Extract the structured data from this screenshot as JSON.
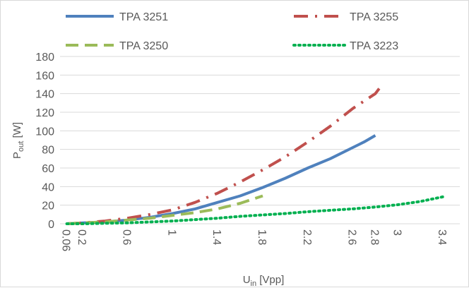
{
  "chart_data": {
    "type": "line",
    "xlabel": {
      "main": "U",
      "sub": "in",
      "rest": " [Vpp]"
    },
    "ylabel": {
      "main": "P",
      "sub": "out",
      "rest": " [W]"
    },
    "ylim": [
      0,
      180
    ],
    "y_ticks": [
      0,
      20,
      40,
      60,
      80,
      100,
      120,
      140,
      160,
      180
    ],
    "xlim": [
      0,
      3.55
    ],
    "x_ticks": [
      {
        "value": 0.06,
        "label": "0.06"
      },
      {
        "value": 0.2,
        "label": "0.2"
      },
      {
        "value": 0.6,
        "label": "0.6"
      },
      {
        "value": 1.0,
        "label": "1"
      },
      {
        "value": 1.4,
        "label": "1.4"
      },
      {
        "value": 1.8,
        "label": "1.8"
      },
      {
        "value": 2.2,
        "label": "2.2"
      },
      {
        "value": 2.6,
        "label": "2.6"
      },
      {
        "value": 2.8,
        "label": "2.8"
      },
      {
        "value": 3.0,
        "label": "3"
      },
      {
        "value": 3.4,
        "label": "3.4"
      }
    ],
    "grid": true,
    "legend_position": "top",
    "series": [
      {
        "name": "TPA 3251",
        "color": "#4f81bd",
        "style": "solid",
        "x": [
          0.06,
          0.2,
          0.4,
          0.6,
          0.8,
          1.0,
          1.2,
          1.4,
          1.6,
          1.8,
          2.0,
          2.2,
          2.4,
          2.6,
          2.7,
          2.8
        ],
        "y": [
          0,
          1,
          2,
          4,
          7,
          11,
          16,
          23,
          30,
          39,
          49,
          60,
          70,
          82,
          88,
          95
        ]
      },
      {
        "name": "TPA 3255",
        "color": "#c0504d",
        "style": "dashdot",
        "x": [
          0.06,
          0.2,
          0.4,
          0.6,
          0.8,
          1.0,
          1.2,
          1.4,
          1.6,
          1.8,
          2.0,
          2.2,
          2.4,
          2.6,
          2.8,
          2.85
        ],
        "y": [
          0,
          1,
          3,
          6,
          10,
          15,
          23,
          33,
          45,
          58,
          72,
          88,
          105,
          124,
          140,
          148
        ]
      },
      {
        "name": "TPA 3250",
        "color": "#9bbb59",
        "style": "dash",
        "x": [
          0.06,
          0.2,
          0.4,
          0.6,
          0.8,
          1.0,
          1.2,
          1.4,
          1.6,
          1.8
        ],
        "y": [
          0,
          1,
          2,
          4,
          6,
          9,
          12,
          16,
          22,
          30
        ]
      },
      {
        "name": "TPA 3223",
        "color": "#00b050",
        "style": "dot",
        "x": [
          0.06,
          0.2,
          0.4,
          0.6,
          0.8,
          1.0,
          1.2,
          1.4,
          1.6,
          1.8,
          2.0,
          2.2,
          2.4,
          2.6,
          2.8,
          3.0,
          3.2,
          3.4
        ],
        "y": [
          0,
          0,
          0.5,
          1,
          2,
          3,
          4.5,
          6,
          8,
          9.5,
          11,
          13,
          14.5,
          16,
          18,
          20.5,
          24,
          29
        ]
      }
    ]
  }
}
